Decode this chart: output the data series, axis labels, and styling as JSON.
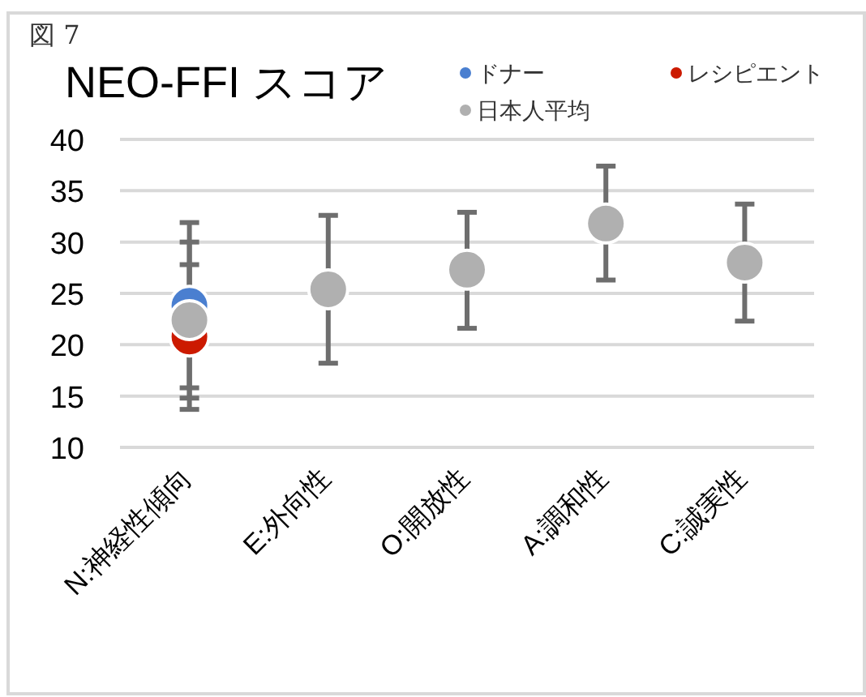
{
  "chart_data": {
    "type": "scatter",
    "title": "NEO-FFI スコア",
    "annotations": [
      "図 7"
    ],
    "categories": [
      "N:神経性傾向",
      "E:外向性",
      "O:開放性",
      "A:調和性",
      "C:誠実性"
    ],
    "ylim": [
      10,
      40
    ],
    "yticks": [
      10,
      15,
      20,
      25,
      30,
      35,
      40
    ],
    "grid": "y",
    "legend": "top",
    "marker": "circle",
    "series": [
      {
        "name": "ドナー",
        "color": "#4a7fd0",
        "values": [
          23.8,
          null,
          null,
          null,
          null
        ],
        "errors": [
          [
            15.8,
            31.9
          ],
          null,
          null,
          null,
          null
        ]
      },
      {
        "name": "レシピエント",
        "color": "#cc1a00",
        "values": [
          20.8,
          null,
          null,
          null,
          null
        ],
        "errors": [
          [
            13.7,
            27.8
          ],
          null,
          null,
          null,
          null
        ]
      },
      {
        "name": "日本人平均",
        "color": "#b0b0b0",
        "values": [
          22.4,
          25.4,
          27.3,
          31.8,
          28.0
        ],
        "errors": [
          [
            14.8,
            30.0
          ],
          [
            18.2,
            32.6
          ],
          [
            21.6,
            32.9
          ],
          [
            26.3,
            37.4
          ],
          [
            22.3,
            33.7
          ]
        ]
      }
    ]
  }
}
